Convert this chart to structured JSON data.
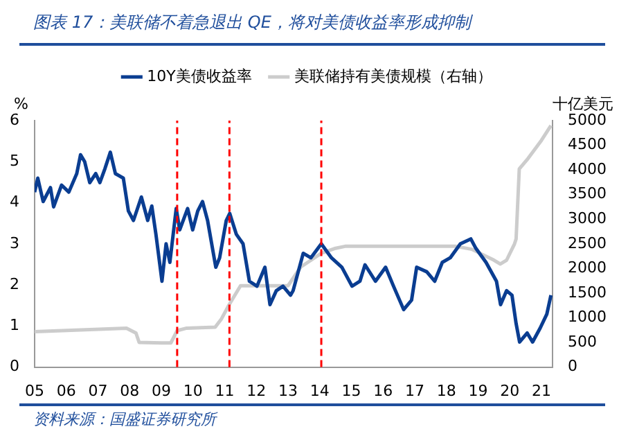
{
  "chart_data": {
    "type": "line",
    "title": "图表 17：美联储不着急退出 QE，将对美债收益率形成抑制",
    "ylabel": "%",
    "y2label": "十亿美元",
    "annotations": [
      "资料来源：国盛证券研究所"
    ],
    "series": [
      {
        "name": "10Y美债收益率",
        "color": "#0a3d91",
        "axis": "y",
        "x": [
          2005.0,
          2005.1,
          2005.27,
          2005.5,
          2005.6,
          2005.85,
          2006.08,
          2006.33,
          2006.45,
          2006.58,
          2006.74,
          2006.93,
          2007.06,
          2007.22,
          2007.39,
          2007.55,
          2007.8,
          2007.96,
          2008.12,
          2008.37,
          2008.57,
          2008.7,
          2008.83,
          2009.02,
          2009.15,
          2009.27,
          2009.47,
          2009.58,
          2009.83,
          2009.99,
          2010.15,
          2010.3,
          2010.46,
          2010.72,
          2010.84,
          2011.05,
          2011.16,
          2011.37,
          2011.58,
          2011.78,
          2012.02,
          2012.27,
          2012.43,
          2012.63,
          2012.84,
          2013.08,
          2013.16,
          2013.48,
          2013.72,
          2014.05,
          2014.37,
          2014.7,
          2015.02,
          2015.27,
          2015.43,
          2015.76,
          2016.08,
          2016.33,
          2016.65,
          2016.9,
          2017.06,
          2017.38,
          2017.63,
          2017.87,
          2018.12,
          2018.44,
          2018.77,
          2018.93,
          2019.25,
          2019.58,
          2019.71,
          2019.9,
          2020.07,
          2020.2,
          2020.31,
          2020.55,
          2020.72,
          2020.96,
          2021.17,
          2021.3
        ],
        "values": [
          4.26,
          4.6,
          4.03,
          4.37,
          3.9,
          4.43,
          4.26,
          4.71,
          5.17,
          5.0,
          4.49,
          4.71,
          4.49,
          4.83,
          5.23,
          4.71,
          4.6,
          3.8,
          3.57,
          4.14,
          3.57,
          3.92,
          3.23,
          2.09,
          3.0,
          2.55,
          3.86,
          3.34,
          3.86,
          3.34,
          3.8,
          4.03,
          3.57,
          2.43,
          2.66,
          3.57,
          3.74,
          3.23,
          3.0,
          2.09,
          1.97,
          2.43,
          1.52,
          1.86,
          1.97,
          1.75,
          1.86,
          2.77,
          2.66,
          3.0,
          2.66,
          2.43,
          1.97,
          2.09,
          2.49,
          2.09,
          2.43,
          1.97,
          1.4,
          1.63,
          2.43,
          2.32,
          2.09,
          2.55,
          2.66,
          3.0,
          3.12,
          2.89,
          2.55,
          2.09,
          1.52,
          1.86,
          1.75,
          1.06,
          0.61,
          0.83,
          0.61,
          0.95,
          1.29,
          1.75
        ]
      },
      {
        "name": "美联储持有美债规模（右轴）",
        "color": "#cccccc",
        "axis": "y2",
        "x": [
          2005.0,
          2007.9,
          2008.2,
          2008.3,
          2009.0,
          2009.3,
          2009.5,
          2009.8,
          2010.7,
          2010.9,
          2011.1,
          2011.5,
          2011.7,
          2012.5,
          2013.0,
          2013.4,
          2014.05,
          2014.5,
          2014.8,
          2018.3,
          2018.8,
          2019.5,
          2019.7,
          2019.9,
          2020.15,
          2020.2,
          2020.3,
          2020.55,
          2021.0,
          2021.3
        ],
        "values": [
          720,
          790,
          690,
          500,
          490,
          490,
          740,
          790,
          810,
          980,
          1220,
          1650,
          1650,
          1650,
          1650,
          2030,
          2310,
          2410,
          2450,
          2450,
          2390,
          2170,
          2090,
          2170,
          2500,
          2600,
          4020,
          4210,
          4600,
          4900
        ]
      }
    ],
    "xlim": [
      2005,
      2021.35
    ],
    "xticks": [
      {
        "value": 2005,
        "label": "05"
      },
      {
        "value": 2006,
        "label": "06"
      },
      {
        "value": 2007,
        "label": "07"
      },
      {
        "value": 2008,
        "label": "08"
      },
      {
        "value": 2009,
        "label": "09"
      },
      {
        "value": 2010,
        "label": "10"
      },
      {
        "value": 2011,
        "label": "11"
      },
      {
        "value": 2012,
        "label": "12"
      },
      {
        "value": 2013,
        "label": "13"
      },
      {
        "value": 2014,
        "label": "14"
      },
      {
        "value": 2015,
        "label": "15"
      },
      {
        "value": 2016,
        "label": "16"
      },
      {
        "value": 2017,
        "label": "17"
      },
      {
        "value": 2018,
        "label": "18"
      },
      {
        "value": 2019,
        "label": "19"
      },
      {
        "value": 2020,
        "label": "20"
      },
      {
        "value": 2021,
        "label": "21"
      }
    ],
    "ylim": [
      0,
      6
    ],
    "yticks": [
      0,
      1,
      2,
      3,
      4,
      5,
      6
    ],
    "y2lim": [
      0,
      5000
    ],
    "y2ticks": [
      0,
      500,
      1000,
      1500,
      2000,
      2500,
      3000,
      3500,
      4000,
      4500,
      5000
    ],
    "ref_lines": [
      {
        "axis": "x",
        "value": 2009.5,
        "color": "#ff0000",
        "line_style": "dashed"
      },
      {
        "axis": "x",
        "value": 2011.15,
        "color": "#ff0000",
        "line_style": "dashed"
      },
      {
        "axis": "x",
        "value": 2014.05,
        "color": "#ff0000",
        "line_style": "dashed"
      }
    ],
    "grid": false,
    "legend": "top",
    "marker": "none",
    "line_style": "solid"
  }
}
